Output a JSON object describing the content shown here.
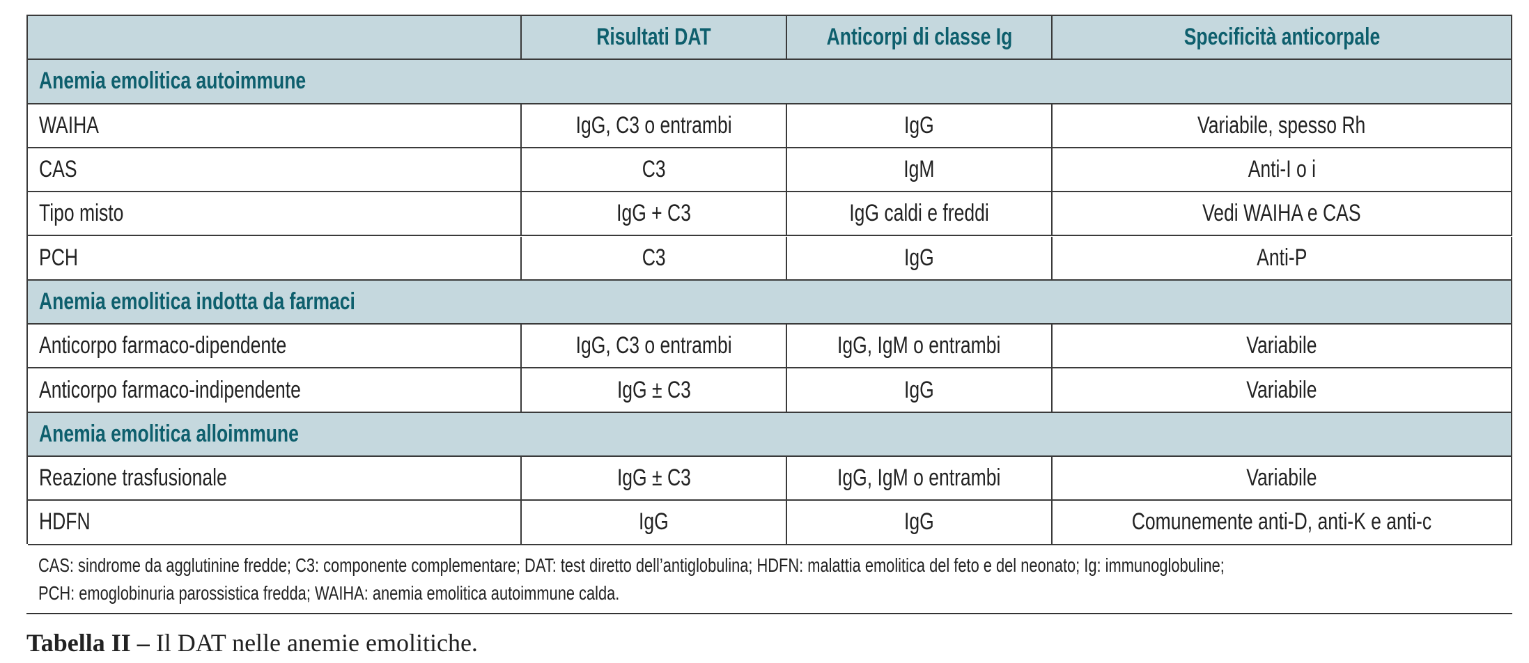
{
  "table": {
    "header": [
      "",
      "Risultati DAT",
      "Anticorpi di classe Ig",
      "Specificità anticorpale"
    ],
    "sections": [
      {
        "title": "Anemia emolitica autoimmune",
        "rows": [
          [
            "WAIHA",
            "IgG, C3 o entrambi",
            "IgG",
            "Variabile, spesso Rh"
          ],
          [
            "CAS",
            "C3",
            "IgM",
            "Anti-I o i"
          ],
          [
            "Tipo misto",
            "IgG + C3",
            "IgG caldi e freddi",
            "Vedi WAIHA e CAS"
          ],
          [
            "PCH",
            "C3",
            "IgG",
            "Anti-P"
          ]
        ]
      },
      {
        "title": "Anemia emolitica indotta da farmaci",
        "rows": [
          [
            "Anticorpo farmaco-dipendente",
            "IgG, C3 o entrambi",
            "IgG, IgM o entrambi",
            "Variabile"
          ],
          [
            "Anticorpo farmaco-indipendente",
            "IgG ± C3",
            "IgG",
            "Variabile"
          ]
        ]
      },
      {
        "title": "Anemia emolitica alloimmune",
        "rows": [
          [
            "Reazione trasfusionale",
            "IgG ± C3",
            "IgG, IgM o entrambi",
            "Variabile"
          ],
          [
            "HDFN",
            "IgG",
            "IgG",
            "Comunemente anti-D, anti-K e anti-c"
          ]
        ]
      }
    ]
  },
  "footnote": {
    "lines": [
      "CAS: sindrome da agglutinine fredde; C3: componente complementare; DAT: test diretto dell’antiglobulina; HDFN: malattia emolitica del feto e del neonato; Ig: immunoglobuline;",
      "PCH: emoglobinuria parossistica fredda; WAIHA: anemia emolitica autoimmune calda."
    ]
  },
  "caption": {
    "label": "Tabella II –",
    "text": "Il DAT nelle anemie emolitiche."
  }
}
